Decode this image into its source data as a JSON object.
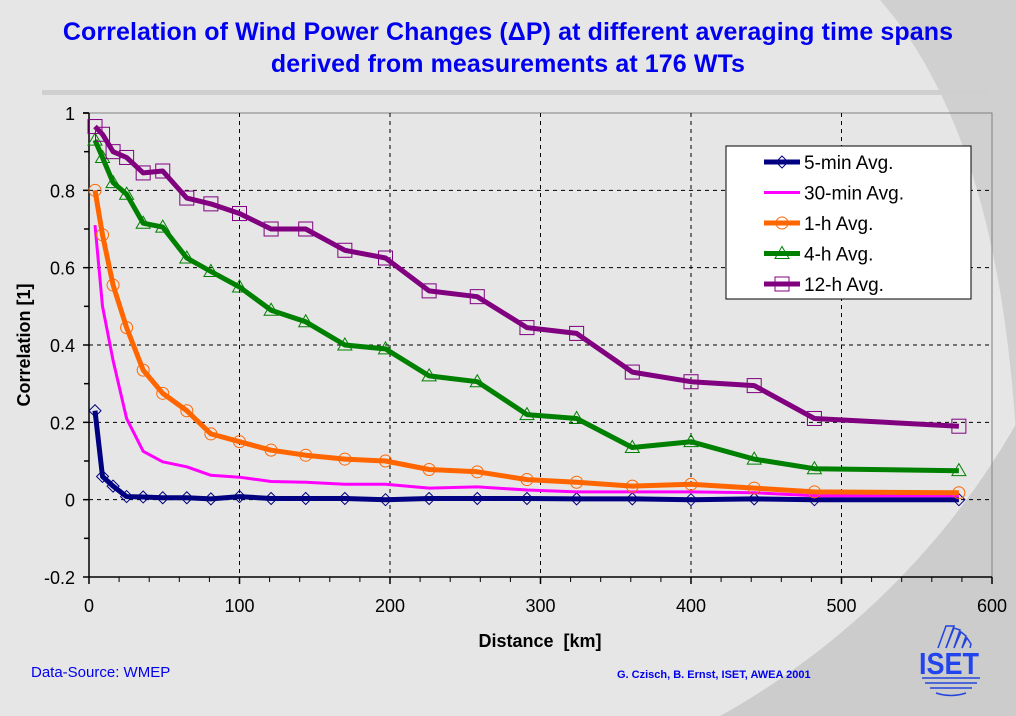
{
  "header": {
    "title_line1": "Correlation of Wind Power Changes (ΔP) at different averaging time spans",
    "title_line2": "derived from measurements at 176 WTs"
  },
  "footer": {
    "data_source": "Data-Source: WMEP",
    "credit": "G. Czisch, B. Ernst, ISET, AWEA 2001",
    "logo_text": "ISET"
  },
  "chart_data": {
    "type": "line",
    "title": "Correlation of Wind Power Changes (ΔP) at different averaging time spans derived from measurements at 176 WTs",
    "xlabel": "Distance  [km]",
    "ylabel": "Correlation [1]",
    "xlim": [
      0,
      600
    ],
    "ylim": [
      -0.2,
      1
    ],
    "xticks": [
      0,
      100,
      200,
      300,
      400,
      500,
      600
    ],
    "xtick_labels": [
      "0",
      "100",
      "200",
      "300",
      "400",
      "500",
      "600"
    ],
    "yticks": [
      -0.2,
      0,
      0.2,
      0.4,
      0.6,
      0.8,
      1
    ],
    "ytick_labels": [
      "-0.2",
      "0",
      "0.2",
      "0.4",
      "0.6",
      "0.8",
      "1"
    ],
    "grid": true,
    "legend_position": "top-right",
    "x": [
      4,
      9,
      16,
      25,
      36,
      49,
      65,
      81,
      100,
      121,
      144,
      170,
      197,
      226,
      258,
      291,
      324,
      361,
      400,
      442,
      482,
      578
    ],
    "series": [
      {
        "name": "5-min Avg.",
        "color": "#000080",
        "marker": "diamond",
        "values": [
          0.23,
          0.06,
          0.035,
          0.008,
          0.007,
          0.005,
          0.005,
          0.002,
          0.008,
          0.003,
          0.003,
          0.003,
          0.0,
          0.003,
          0.003,
          0.003,
          0.002,
          0.002,
          0.0,
          0.002,
          0.0,
          0.0
        ]
      },
      {
        "name": "30-min Avg.",
        "color": "#ff00ff",
        "marker": "none",
        "values": [
          0.71,
          0.5,
          0.36,
          0.21,
          0.125,
          0.098,
          0.085,
          0.063,
          0.058,
          0.047,
          0.045,
          0.04,
          0.04,
          0.03,
          0.033,
          0.025,
          0.02,
          0.02,
          0.02,
          0.018,
          0.01,
          0.01
        ]
      },
      {
        "name": "1-h Avg.",
        "color": "#ff6600",
        "marker": "circle",
        "values": [
          0.8,
          0.685,
          0.555,
          0.445,
          0.335,
          0.275,
          0.23,
          0.17,
          0.15,
          0.128,
          0.115,
          0.105,
          0.1,
          0.078,
          0.072,
          0.052,
          0.045,
          0.035,
          0.04,
          0.03,
          0.02,
          0.018
        ]
      },
      {
        "name": "4-h Avg.",
        "color": "#008000",
        "marker": "triangle",
        "values": [
          0.93,
          0.885,
          0.82,
          0.79,
          0.715,
          0.705,
          0.625,
          0.59,
          0.55,
          0.49,
          0.46,
          0.4,
          0.39,
          0.32,
          0.305,
          0.22,
          0.21,
          0.135,
          0.15,
          0.105,
          0.08,
          0.075
        ]
      },
      {
        "name": "12-h Avg.",
        "color": "#800080",
        "marker": "square",
        "values": [
          0.965,
          0.945,
          0.9,
          0.885,
          0.845,
          0.85,
          0.78,
          0.765,
          0.74,
          0.7,
          0.7,
          0.645,
          0.625,
          0.54,
          0.525,
          0.445,
          0.43,
          0.33,
          0.305,
          0.295,
          0.21,
          0.19
        ]
      }
    ]
  }
}
